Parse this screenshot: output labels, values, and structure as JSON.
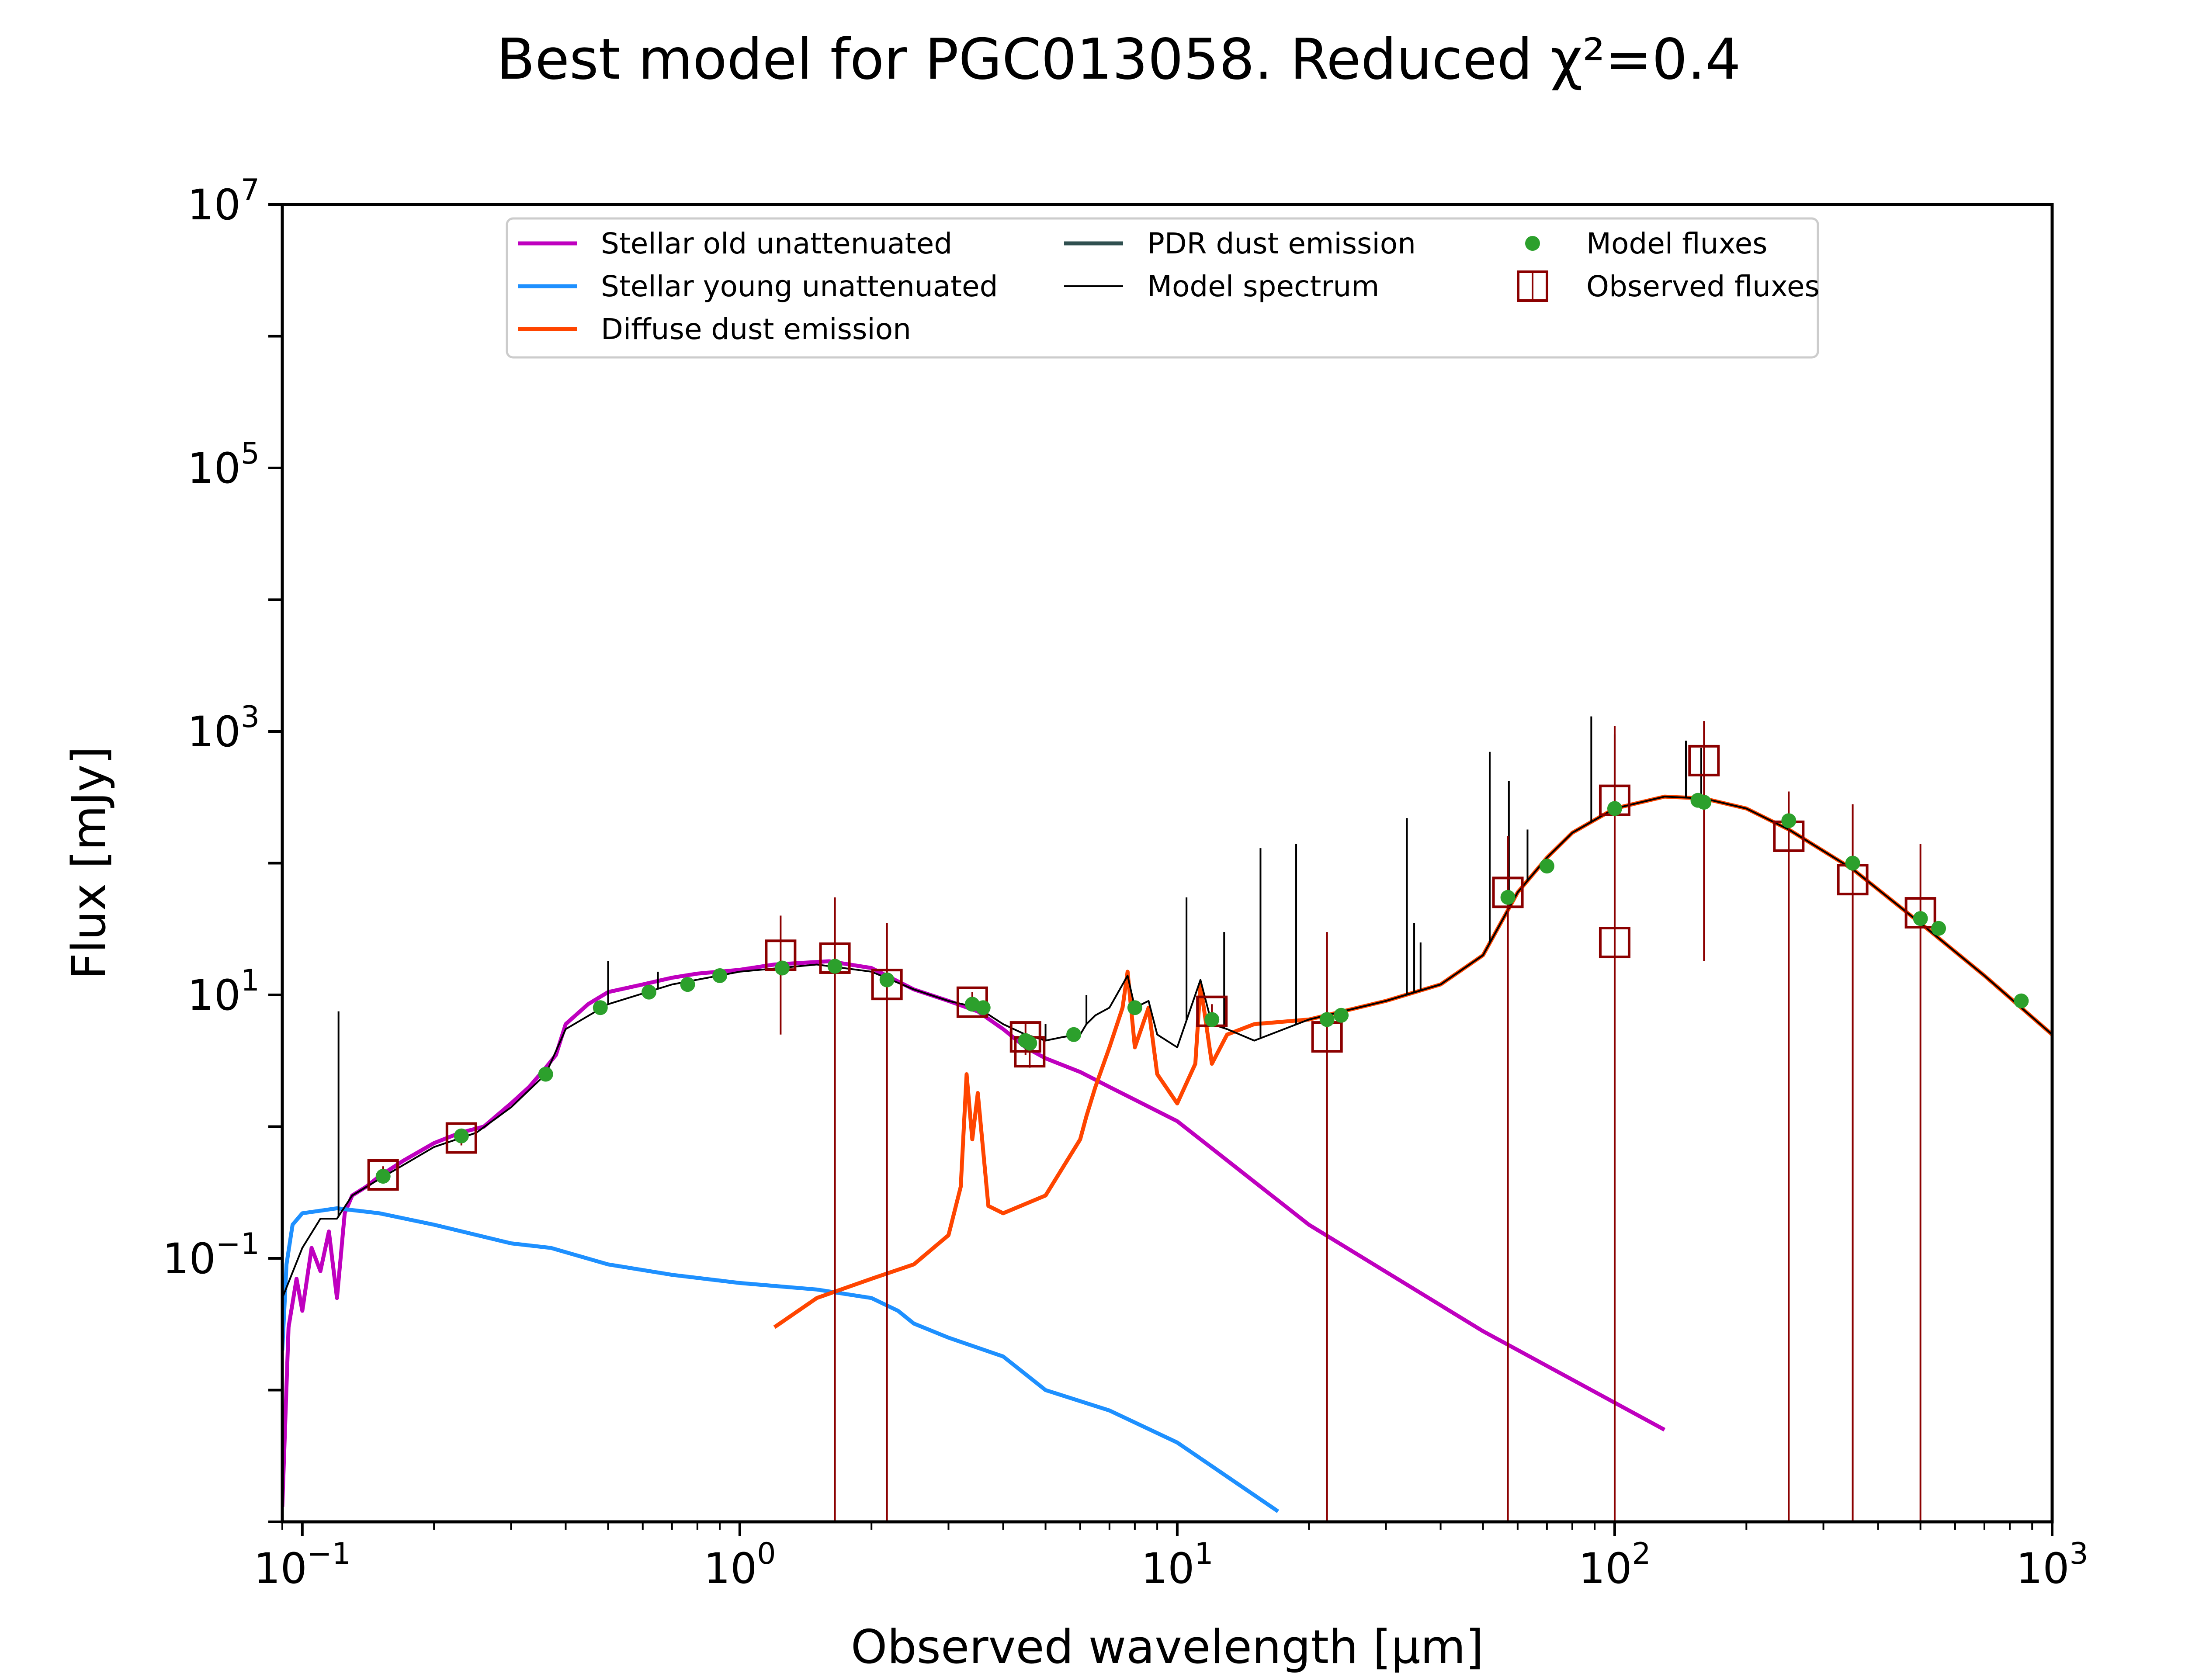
{
  "title": "Best model for PGC013058. Reduced χ²=0.4",
  "chart_data": {
    "type": "line",
    "title": "Best model for PGC013058. Reduced χ²=0.4",
    "xlabel": "Observed wavelength [μm]",
    "ylabel": "Flux [mJy]",
    "xscale": "log",
    "yscale": "log",
    "xlim": [
      0.09,
      1000
    ],
    "ylim": [
      0.001,
      10000000
    ],
    "xticks": [
      {
        "value": 0.1,
        "base": "10",
        "exp": "−1"
      },
      {
        "value": 1,
        "base": "10",
        "exp": "0"
      },
      {
        "value": 10,
        "base": "10",
        "exp": "1"
      },
      {
        "value": 100,
        "base": "10",
        "exp": "2"
      },
      {
        "value": 1000,
        "base": "10",
        "exp": "3"
      }
    ],
    "yticks": [
      {
        "value": 0.1,
        "base": "10",
        "exp": "−1"
      },
      {
        "value": 10,
        "base": "10",
        "exp": "1"
      },
      {
        "value": 1000,
        "base": "10",
        "exp": "3"
      },
      {
        "value": 100000,
        "base": "10",
        "exp": "5"
      },
      {
        "value": 10000000,
        "base": "10",
        "exp": "7"
      }
    ],
    "grid": false,
    "legend_position": "top-center",
    "legend": [
      {
        "name": "Stellar old unattenuated",
        "marker": "line",
        "color": "#bf00bf"
      },
      {
        "name": "Stellar young unattenuated",
        "marker": "line",
        "color": "#1e90ff"
      },
      {
        "name": "Diffuse dust emission",
        "marker": "line",
        "color": "#ff4500"
      },
      {
        "name": "PDR dust emission",
        "marker": "line",
        "color": "#2f4f4f"
      },
      {
        "name": "Model spectrum",
        "marker": "thinline",
        "color": "#000000"
      },
      {
        "name": "Model fluxes",
        "marker": "dot",
        "color": "#2ca02c"
      },
      {
        "name": "Observed fluxes",
        "marker": "square",
        "color": "#8b0000"
      }
    ],
    "series": [
      {
        "name": "Stellar old unattenuated",
        "color": "#bf00bf",
        "x": [
          0.09,
          0.093,
          0.097,
          0.1,
          0.105,
          0.11,
          0.115,
          0.12,
          0.125,
          0.13,
          0.14,
          0.15,
          0.17,
          0.2,
          0.23,
          0.26,
          0.3,
          0.33,
          0.36,
          0.38,
          0.4,
          0.45,
          0.5,
          0.6,
          0.7,
          0.8,
          1.0,
          1.2,
          1.6,
          2.0,
          2.5,
          3.0,
          3.5,
          4.0,
          4.5,
          5.0,
          6.0,
          7.0,
          8.0,
          10.0,
          20.0,
          50.0,
          130.0
        ],
        "y": [
          0.0013,
          0.03,
          0.07,
          0.04,
          0.12,
          0.08,
          0.16,
          0.05,
          0.22,
          0.3,
          0.35,
          0.42,
          0.55,
          0.75,
          0.9,
          1.0,
          1.5,
          2.0,
          2.8,
          3.5,
          6.0,
          8.5,
          10.5,
          12.0,
          13.5,
          14.5,
          15.5,
          17.0,
          18.0,
          16.0,
          11.0,
          9.0,
          7.5,
          5.5,
          4.0,
          3.3,
          2.6,
          2.0,
          1.6,
          1.1,
          0.18,
          0.028,
          0.005
        ]
      },
      {
        "name": "Stellar young unattenuated",
        "color": "#1e90ff",
        "x": [
          0.09,
          0.092,
          0.095,
          0.1,
          0.11,
          0.12,
          0.15,
          0.2,
          0.3,
          0.37,
          0.5,
          0.7,
          1.0,
          1.5,
          2.0,
          2.3,
          2.5,
          3.0,
          4.0,
          5.0,
          7.0,
          10.0,
          17.0
        ],
        "y": [
          0.02,
          0.09,
          0.18,
          0.22,
          0.23,
          0.24,
          0.22,
          0.18,
          0.13,
          0.12,
          0.09,
          0.075,
          0.065,
          0.058,
          0.05,
          0.04,
          0.032,
          0.025,
          0.018,
          0.01,
          0.007,
          0.004,
          0.0012
        ]
      },
      {
        "name": "Diffuse dust emission",
        "color": "#ff4500",
        "x": [
          1.2,
          1.5,
          2.0,
          2.5,
          3.0,
          3.2,
          3.3,
          3.4,
          3.5,
          3.7,
          4.0,
          5.0,
          6.0,
          6.2,
          6.5,
          7.0,
          7.5,
          7.7,
          8.0,
          8.6,
          9.0,
          10.0,
          11.0,
          11.3,
          12.0,
          13.0,
          15.0,
          20.0,
          30.0,
          40.0,
          50.0,
          60.0,
          70.0,
          80.0,
          100.0,
          130.0,
          160.0,
          200.0,
          250.0,
          350.0,
          500.0,
          700.0,
          1000.0
        ],
        "y": [
          0.03,
          0.05,
          0.07,
          0.09,
          0.15,
          0.35,
          2.5,
          0.8,
          1.8,
          0.25,
          0.22,
          0.3,
          0.8,
          1.2,
          2.0,
          4.0,
          8.0,
          15.0,
          4.0,
          8.0,
          2.5,
          1.5,
          3.0,
          12.0,
          3.0,
          5.0,
          6.0,
          6.5,
          9.0,
          12.0,
          20.0,
          60.0,
          110.0,
          170.0,
          260.0,
          320.0,
          310.0,
          260.0,
          180.0,
          90.0,
          35.0,
          14.0,
          5.0
        ]
      },
      {
        "name": "Model spectrum",
        "color": "#000000",
        "x": [
          0.09,
          0.1,
          0.11,
          0.12,
          0.13,
          0.15,
          0.2,
          0.25,
          0.3,
          0.36,
          0.4,
          0.5,
          0.7,
          1.0,
          1.5,
          2.0,
          2.5,
          3.0,
          3.5,
          4.0,
          4.5,
          5.0,
          5.5,
          6.0,
          6.2,
          6.5,
          7.0,
          7.7,
          8.0,
          8.6,
          9.0,
          10.0,
          11.3,
          12.0,
          13.0,
          15.0,
          20.0,
          30.0,
          40.0,
          50.0,
          60.0,
          70.0,
          80.0,
          100.0,
          130.0,
          160.0,
          200.0,
          250.0,
          350.0,
          500.0,
          700.0,
          1000.0
        ],
        "y": [
          0.05,
          0.12,
          0.2,
          0.2,
          0.3,
          0.4,
          0.7,
          0.9,
          1.4,
          2.5,
          5.5,
          8.5,
          12.0,
          15.0,
          17.0,
          15.0,
          11.0,
          9.0,
          8.0,
          6.0,
          5.0,
          4.5,
          4.8,
          5.0,
          6.0,
          7.0,
          8.0,
          14.0,
          8.0,
          9.0,
          5.0,
          4.0,
          13.0,
          6.0,
          5.5,
          4.5,
          6.5,
          9.0,
          12.0,
          20.0,
          60.0,
          110.0,
          170.0,
          260.0,
          320.0,
          310.0,
          260.0,
          180.0,
          90.0,
          35.0,
          14.0,
          5.0
        ]
      },
      {
        "name": "Model spectrum emission lines",
        "color": "#000000",
        "x": [
          0.121,
          0.5,
          0.65,
          5.0,
          6.2,
          10.5,
          12.8,
          15.5,
          18.7,
          33.5,
          34.8,
          36.0,
          51.8,
          57.3,
          63.2,
          88.4,
          100.0,
          145.5,
          157.7
        ],
        "y": [
          7.5,
          18.0,
          15.0,
          6.0,
          10.0,
          55.0,
          30.0,
          130.0,
          140.0,
          220.0,
          35.0,
          25.0,
          700.0,
          420.0,
          180.0,
          1300.0,
          950.0,
          850.0,
          750.0
        ]
      }
    ],
    "model_fluxes": {
      "name": "Model fluxes",
      "color": "#2ca02c",
      "x": [
        0.153,
        0.231,
        0.36,
        0.48,
        0.62,
        0.76,
        0.9,
        1.25,
        1.65,
        2.17,
        3.4,
        3.6,
        4.5,
        4.6,
        5.8,
        8.0,
        12.0,
        22.0,
        23.7,
        57.0,
        70.0,
        100.0,
        155.0,
        160.0,
        250.0,
        350.0,
        500.0,
        550.0,
        850.0
      ],
      "y": [
        0.42,
        0.85,
        2.5,
        8.0,
        10.5,
        12.0,
        14.0,
        16.0,
        16.5,
        13.0,
        8.5,
        8.0,
        4.5,
        4.3,
        5.0,
        8.0,
        6.5,
        6.5,
        7.0,
        55.0,
        95.0,
        260.0,
        300.0,
        290.0,
        210.0,
        100.0,
        38.0,
        32.0,
        9.0
      ]
    },
    "observed_fluxes": {
      "name": "Observed fluxes",
      "color": "#8b0000",
      "x": [
        0.153,
        0.231,
        1.24,
        1.65,
        2.17,
        3.4,
        4.5,
        4.6,
        12.0,
        22.0,
        57.0,
        100.0,
        100.0,
        160.0,
        250.0,
        350.0,
        500.0
      ],
      "y": [
        0.43,
        0.82,
        20.0,
        19.0,
        12.0,
        8.8,
        4.8,
        3.7,
        7.5,
        4.8,
        60.0,
        300.0,
        25.0,
        600.0,
        160.0,
        75.0,
        42.0
      ],
      "yerr_low": [
        0.38,
        0.72,
        5.0,
        0.001,
        0.001,
        7.5,
        3.5,
        2.8,
        6.5,
        0.001,
        0.001,
        0.001,
        0.001,
        18.0,
        0.001,
        0.001,
        0.001
      ],
      "yerr_high": [
        0.5,
        0.95,
        40.0,
        55.0,
        35.0,
        10.5,
        6.0,
        4.8,
        8.5,
        30.0,
        160.0,
        1100.0,
        0.001,
        1200.0,
        350.0,
        280.0,
        140.0
      ]
    }
  }
}
